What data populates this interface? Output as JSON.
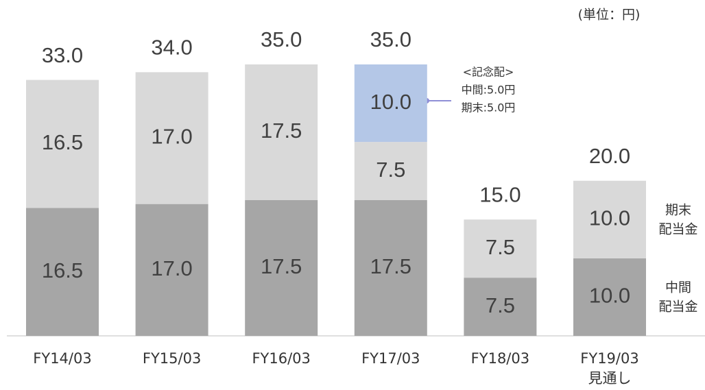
{
  "chart_data": {
    "type": "stacked_bar",
    "unit_label": "(単位：円)",
    "categories": [
      "FY14/03",
      "FY15/03",
      "FY16/03",
      "FY17/03",
      "FY18/03",
      "FY19/03\n見通し"
    ],
    "series": [
      {
        "name": "中間\n配当金",
        "color": "#a6a6a6",
        "values": [
          16.5,
          17,
          17.5,
          17.5,
          7.5,
          10
        ],
        "value_labels": [
          "16.5",
          "17.0",
          "17.5",
          "17.5",
          "7.5",
          "10.0"
        ]
      },
      {
        "name": "期末\n配当金",
        "color": "#d9d9d9",
        "values": [
          16.5,
          17,
          17.5,
          7.5,
          7.5,
          10
        ],
        "value_labels": [
          "16.5",
          "17.0",
          "17.5",
          "7.5",
          "7.5",
          "10.0"
        ]
      },
      {
        "color": "#b4c7e7",
        "values": [
          null,
          null,
          null,
          10,
          null,
          null
        ],
        "value_labels": [
          null,
          null,
          null,
          "10.0",
          null,
          null
        ]
      }
    ],
    "totals": [
      33,
      34,
      35,
      35,
      15,
      20
    ],
    "total_labels": [
      "33.0",
      "34.0",
      "35.0",
      "35.0",
      "15.0",
      "20.0"
    ],
    "annotation": [
      "<記念配>",
      "中間:5.0円",
      "期末:5.0円"
    ],
    "ylim": [
      0,
      35
    ]
  }
}
